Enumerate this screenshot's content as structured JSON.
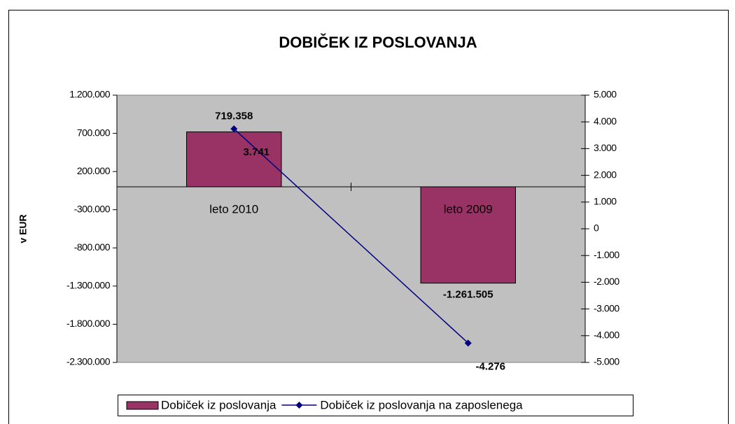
{
  "chart_data": {
    "type": "bar",
    "title": "DOBIČEK IZ POSLOVANJA",
    "ylabel": "v EUR",
    "categories": [
      "leto 2010",
      "leto 2009"
    ],
    "series": [
      {
        "name": "Dobiček iz poslovanja",
        "type": "bar",
        "color": "#993366",
        "values": [
          719358,
          -1261505
        ],
        "value_labels": [
          "719.358",
          "-1.261.505"
        ]
      },
      {
        "name": "Dobiček iz poslovanja na zaposlenega",
        "type": "line",
        "axis": "y2",
        "color": "#000080",
        "values": [
          3741,
          -4276
        ],
        "value_labels": [
          "3.741",
          "-4.276"
        ]
      }
    ],
    "ylim": [
      -2300000,
      1200000
    ],
    "yticks": [
      {
        "value": 1200000,
        "label": "1.200.000"
      },
      {
        "value": 700000,
        "label": "700.000"
      },
      {
        "value": 200000,
        "label": "200.000"
      },
      {
        "value": -300000,
        "label": "-300.000"
      },
      {
        "value": -800000,
        "label": "-800.000"
      },
      {
        "value": -1300000,
        "label": "-1.300.000"
      },
      {
        "value": -1800000,
        "label": "-1.800.000"
      },
      {
        "value": -2300000,
        "label": "-2.300.000"
      }
    ],
    "y2lim": [
      -5000,
      5000
    ],
    "y2ticks": [
      {
        "value": 5000,
        "label": "5.000"
      },
      {
        "value": 4000,
        "label": "4.000"
      },
      {
        "value": 3000,
        "label": "3.000"
      },
      {
        "value": 2000,
        "label": "2.000"
      },
      {
        "value": 1000,
        "label": "1.000"
      },
      0,
      {
        "value": -1000,
        "label": "-1.000"
      },
      {
        "value": -2000,
        "label": "-2.000"
      },
      {
        "value": -3000,
        "label": "-3.000"
      },
      {
        "value": -4000,
        "label": "-4.000"
      },
      {
        "value": -5000,
        "label": "-5.000"
      }
    ],
    "plot_background": "#c0c0c0",
    "legend": "bottom"
  }
}
